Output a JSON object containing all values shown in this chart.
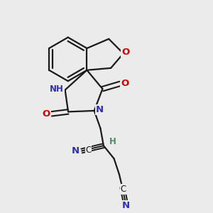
{
  "background_color": "#ebebeb",
  "bond_color": "#1a1a1a",
  "atom_colors": {
    "N": "#3030b0",
    "O": "#cc0000",
    "H": "#4a8a6a",
    "C": "#1a1a1a"
  },
  "figsize": [
    3.0,
    3.0
  ],
  "dpi": 100
}
